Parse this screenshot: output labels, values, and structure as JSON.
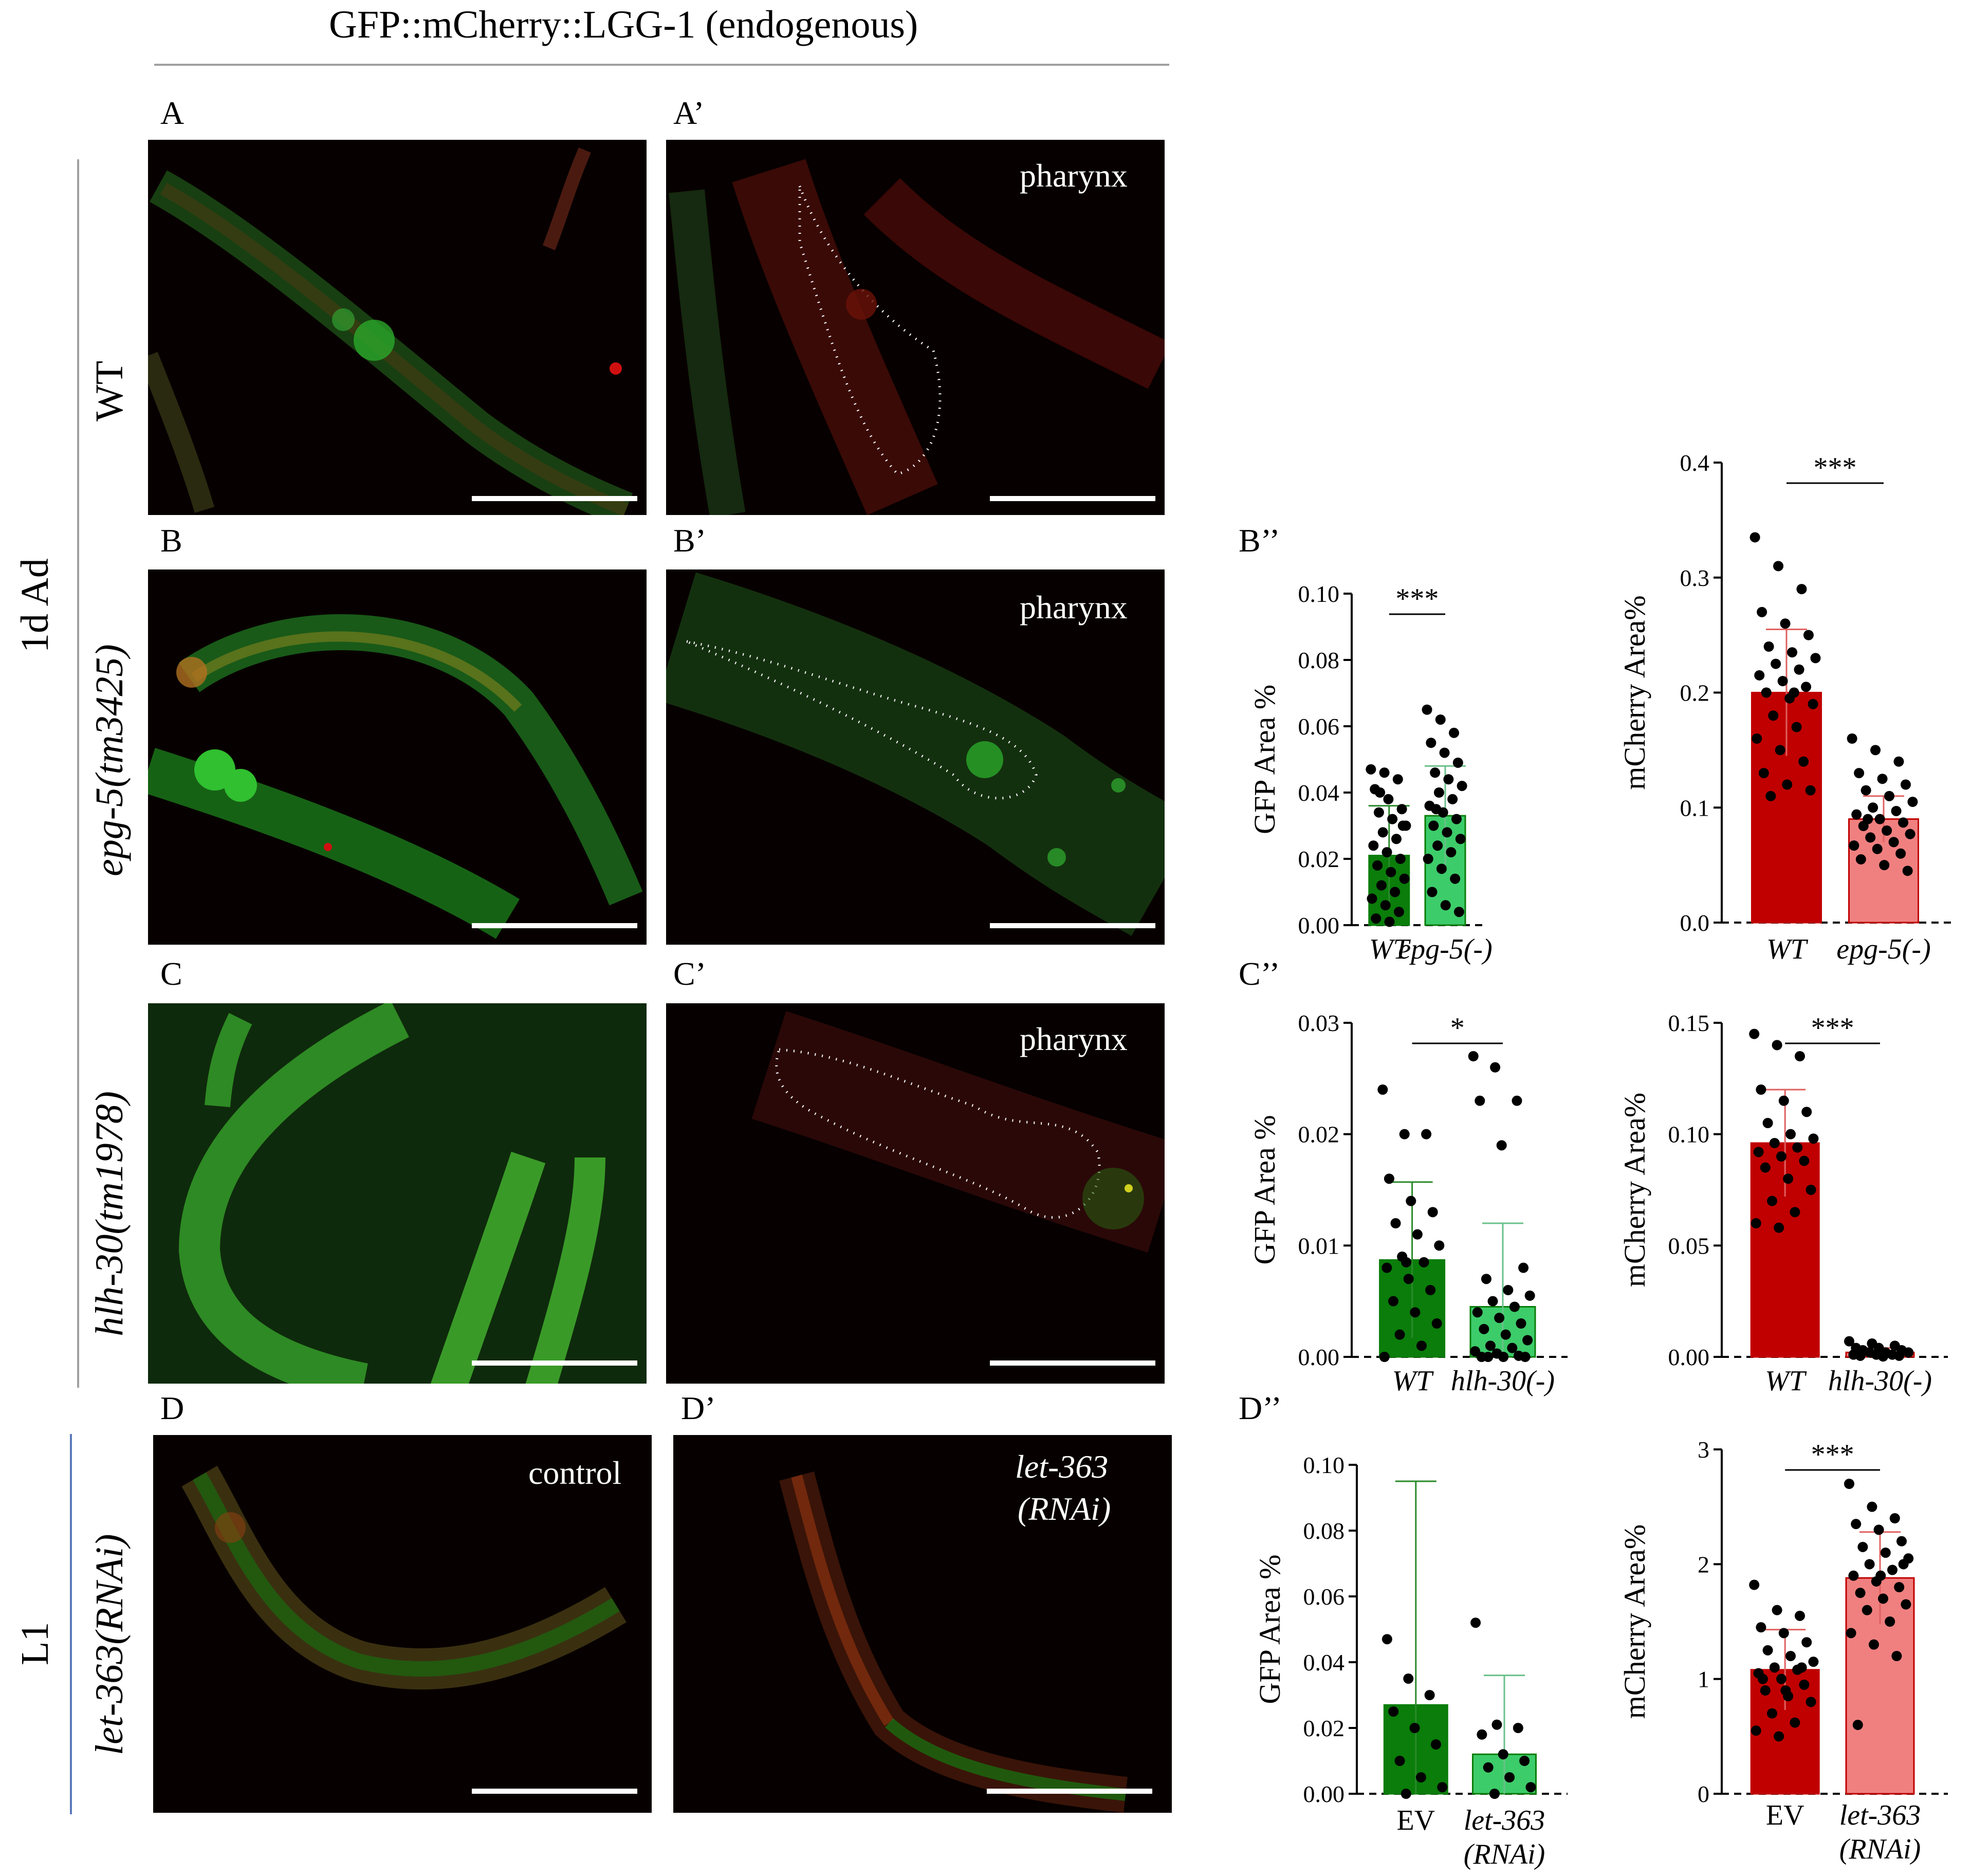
{
  "figure": {
    "header": "GFP::mCherry::LGG-1 (endogenous)",
    "panels": {
      "A": "A",
      "A2": "A’",
      "B": "B",
      "B2": "B’",
      "C": "C",
      "C2": "C’",
      "D": "D",
      "D2": "D’",
      "B3": "B’’",
      "C3": "C’’",
      "D3": "D’’"
    },
    "row_labels": {
      "wt": "WT",
      "epg5": "epg-5(tm3425)",
      "hlh30": "hlh-30(tm1978)",
      "let363": "let-363(RNAi)",
      "stage_adult": "1d Ad",
      "stage_l1": "L1"
    },
    "image_labels": {
      "pharynx": "pharynx",
      "control": "control",
      "let363_line1": "let-363",
      "let363_line2": "(RNAi)"
    },
    "colors": {
      "gfp_dark": "#0a7d0a",
      "gfp_light": "#3dcc6a",
      "mcherry_dark": "#c00000",
      "mcherry_light": "#f08080",
      "micro_bg": "#070000"
    }
  },
  "chart_data": [
    {
      "id": "B-GFP",
      "type": "bar",
      "ylabel": "GFP Area %",
      "categories": [
        "WT",
        "epg-5(-)"
      ],
      "values": [
        0.021,
        0.033
      ],
      "errors": [
        0.015,
        0.015
      ],
      "ylim": [
        0,
        0.1
      ],
      "yticks": [
        "0.00",
        "0.02",
        "0.04",
        "0.06",
        "0.08",
        "0.10"
      ],
      "significance": "***",
      "points": [
        [
          0.047,
          0.046,
          0.044,
          0.041,
          0.038,
          0.035,
          0.034,
          0.032,
          0.03,
          0.028,
          0.026,
          0.024,
          0.022,
          0.02,
          0.018,
          0.016,
          0.014,
          0.012,
          0.01,
          0.008,
          0.006,
          0.004,
          0.002,
          0.001,
          0.03,
          0.04
        ],
        [
          0.065,
          0.062,
          0.058,
          0.055,
          0.052,
          0.049,
          0.046,
          0.044,
          0.042,
          0.04,
          0.038,
          0.036,
          0.034,
          0.032,
          0.03,
          0.028,
          0.026,
          0.024,
          0.022,
          0.02,
          0.017,
          0.014,
          0.01,
          0.006,
          0.004,
          0.035
        ]
      ]
    },
    {
      "id": "B-mCherry",
      "type": "bar",
      "ylabel": "mCherry Area%",
      "categories": [
        "WT",
        "epg-5(-)"
      ],
      "values": [
        0.2,
        0.09
      ],
      "errors": [
        0.055,
        0.02
      ],
      "ylim": [
        0,
        0.4
      ],
      "yticks": [
        "0.0",
        "0.1",
        "0.2",
        "0.3",
        "0.4"
      ],
      "significance": "***",
      "points": [
        [
          0.335,
          0.31,
          0.29,
          0.27,
          0.26,
          0.25,
          0.24,
          0.235,
          0.23,
          0.225,
          0.22,
          0.215,
          0.21,
          0.205,
          0.2,
          0.195,
          0.19,
          0.18,
          0.17,
          0.16,
          0.15,
          0.14,
          0.13,
          0.12,
          0.115,
          0.11,
          0.2
        ],
        [
          0.16,
          0.15,
          0.14,
          0.13,
          0.125,
          0.12,
          0.115,
          0.11,
          0.105,
          0.1,
          0.097,
          0.094,
          0.09,
          0.087,
          0.084,
          0.08,
          0.077,
          0.074,
          0.07,
          0.067,
          0.064,
          0.06,
          0.055,
          0.05,
          0.045,
          0.09
        ]
      ]
    },
    {
      "id": "C-GFP",
      "type": "bar",
      "ylabel": "GFP Area %",
      "categories": [
        "WT",
        "hlh-30(-)"
      ],
      "values": [
        0.0087,
        0.0045
      ],
      "errors": [
        0.007,
        0.0075
      ],
      "ylim": [
        0,
        0.03
      ],
      "yticks": [
        "0.00",
        "0.01",
        "0.02",
        "0.03"
      ],
      "significance": "*",
      "points": [
        [
          0.024,
          0.02,
          0.02,
          0.016,
          0.014,
          0.013,
          0.012,
          0.011,
          0.01,
          0.009,
          0.0085,
          0.008,
          0.007,
          0.006,
          0.005,
          0.004,
          0.003,
          0.002,
          0.001,
          0.0,
          0.0085
        ],
        [
          0.027,
          0.026,
          0.023,
          0.023,
          0.019,
          0.008,
          0.007,
          0.006,
          0.0055,
          0.005,
          0.0045,
          0.004,
          0.0035,
          0.003,
          0.0025,
          0.002,
          0.0015,
          0.001,
          0.0008,
          0.0005,
          0.0003,
          0.0001,
          0.0,
          0.0,
          0.0,
          0.0
        ]
      ]
    },
    {
      "id": "C-mCherry",
      "type": "bar",
      "ylabel": "mCherry Area%",
      "categories": [
        "WT",
        "hlh-30(-)"
      ],
      "values": [
        0.096,
        0.002
      ],
      "errors": [
        0.024,
        0.002
      ],
      "ylim": [
        0,
        0.15
      ],
      "yticks": [
        "0.00",
        "0.05",
        "0.10",
        "0.15"
      ],
      "significance": "***",
      "points": [
        [
          0.145,
          0.14,
          0.135,
          0.12,
          0.115,
          0.11,
          0.105,
          0.1,
          0.098,
          0.096,
          0.094,
          0.092,
          0.09,
          0.088,
          0.085,
          0.08,
          0.075,
          0.07,
          0.065,
          0.06,
          0.058
        ],
        [
          0.007,
          0.006,
          0.005,
          0.004,
          0.004,
          0.003,
          0.003,
          0.002,
          0.002,
          0.002,
          0.001,
          0.001,
          0.001,
          0.0005,
          0.0005,
          0.0002
        ]
      ]
    },
    {
      "id": "D-GFP",
      "type": "bar",
      "ylabel": "GFP Area %",
      "categories": [
        "EV",
        "let-363 (RNAi)"
      ],
      "values": [
        0.027,
        0.012
      ],
      "errors": [
        0.068,
        0.024
      ],
      "ylim": [
        0,
        0.1
      ],
      "yticks": [
        "0.00",
        "0.02",
        "0.04",
        "0.06",
        "0.08",
        "0.10"
      ],
      "significance": "",
      "points": [
        [
          0.047,
          0.035,
          0.03,
          0.025,
          0.02,
          0.015,
          0.01,
          0.005,
          0.002,
          0.0
        ],
        [
          0.052,
          0.021,
          0.02,
          0.018,
          0.012,
          0.01,
          0.008,
          0.005,
          0.002,
          0.0
        ]
      ]
    },
    {
      "id": "D-mCherry",
      "type": "bar",
      "ylabel": "mCherry Area%",
      "categories": [
        "EV",
        "let-363 (RNAi)"
      ],
      "values": [
        1.08,
        1.88
      ],
      "errors": [
        0.35,
        0.4
      ],
      "ylim": [
        0,
        3
      ],
      "yticks": [
        "0",
        "1",
        "2",
        "3"
      ],
      "significance": "***",
      "points": [
        [
          1.82,
          1.6,
          1.55,
          1.45,
          1.4,
          1.32,
          1.25,
          1.2,
          1.15,
          1.1,
          1.08,
          1.05,
          1.0,
          0.95,
          0.9,
          0.85,
          0.8,
          0.7,
          0.62,
          0.55,
          0.5,
          1.1,
          1.0,
          0.9
        ],
        [
          2.7,
          2.5,
          2.4,
          2.35,
          2.3,
          2.2,
          2.15,
          2.1,
          2.05,
          2.0,
          1.95,
          1.9,
          1.85,
          1.8,
          1.75,
          1.7,
          1.65,
          1.6,
          1.5,
          1.4,
          1.3,
          1.2,
          0.6,
          1.9,
          2.0
        ]
      ]
    }
  ]
}
